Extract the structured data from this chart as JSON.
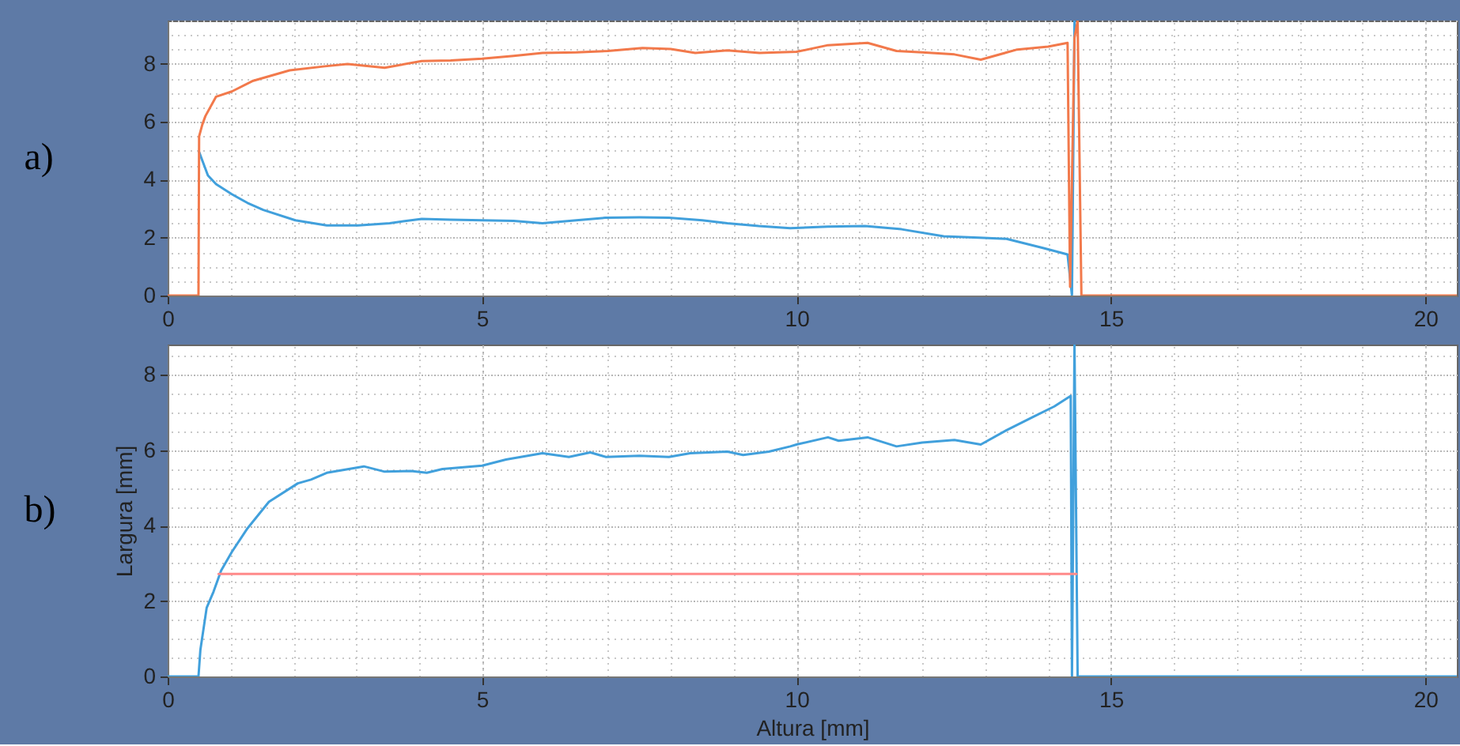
{
  "chart_data": [
    {
      "type": "line",
      "title": "a)",
      "xlim": [
        0,
        20.5
      ],
      "ylim": [
        0,
        9.5
      ],
      "xticks": [
        0,
        5,
        10,
        15,
        20
      ],
      "yticks": [
        0,
        2,
        4,
        6,
        8
      ],
      "grid": true,
      "series": [
        {
          "color": "#41a0dc",
          "x": [
            0.5,
            0.64,
            0.77,
            1.02,
            1.27,
            1.52,
            2.03,
            2.53,
            3.03,
            3.53,
            4.04,
            4.5,
            5.0,
            5.5,
            5.96,
            6.5,
            6.97,
            7.5,
            7.97,
            8.5,
            8.9,
            9.4,
            9.9,
            10.5,
            11.09,
            11.67,
            12.34,
            12.9,
            13.34,
            13.93,
            14.31,
            14.38,
            14.42
          ],
          "values": [
            4.96,
            4.15,
            3.85,
            3.5,
            3.2,
            2.96,
            2.6,
            2.42,
            2.42,
            2.5,
            2.65,
            2.62,
            2.6,
            2.58,
            2.5,
            2.6,
            2.69,
            2.7,
            2.69,
            2.6,
            2.5,
            2.4,
            2.33,
            2.38,
            2.4,
            2.29,
            2.05,
            2.0,
            1.96,
            1.64,
            1.42,
            0,
            9.5
          ]
        },
        {
          "color": "#f2794b",
          "x": [
            0,
            0.49,
            0.5,
            0.55,
            0.6,
            0.77,
            1.02,
            1.36,
            1.94,
            2.5,
            2.86,
            3.45,
            4.04,
            4.5,
            5.0,
            5.5,
            5.96,
            6.5,
            7.0,
            7.55,
            8.0,
            8.39,
            8.9,
            9.41,
            10.0,
            10.5,
            11.13,
            11.59,
            12.0,
            12.51,
            12.93,
            13.51,
            14.0,
            14.31,
            14.35,
            14.42,
            14.47,
            14.53,
            20.5
          ],
          "values": [
            0,
            0,
            5.5,
            5.9,
            6.2,
            6.87,
            7.05,
            7.42,
            7.78,
            7.92,
            8.0,
            7.87,
            8.1,
            8.12,
            8.18,
            8.28,
            8.38,
            8.4,
            8.45,
            8.55,
            8.52,
            8.38,
            8.47,
            8.38,
            8.42,
            8.65,
            8.73,
            8.45,
            8.4,
            8.33,
            8.15,
            8.5,
            8.6,
            8.73,
            0.3,
            8.9,
            9.5,
            0,
            0
          ]
        }
      ]
    },
    {
      "type": "line",
      "title": "b)",
      "xlabel": "Altura [mm]",
      "ylabel": "Largura [mm]",
      "xlim": [
        0,
        20.5
      ],
      "ylim": [
        0,
        8.8
      ],
      "xticks": [
        0,
        5,
        10,
        15,
        20
      ],
      "yticks": [
        0,
        2,
        4,
        6,
        8
      ],
      "grid": true,
      "series": [
        {
          "color": "#41a0dc",
          "x": [
            0,
            0.49,
            0.52,
            0.62,
            0.73,
            0.85,
            1.02,
            1.27,
            1.61,
            2.07,
            2.28,
            2.53,
            3.12,
            3.45,
            3.87,
            4.12,
            4.37,
            5.0,
            5.38,
            5.96,
            6.38,
            6.72,
            6.97,
            7.5,
            7.97,
            8.31,
            8.9,
            9.15,
            9.56,
            9.9,
            10.0,
            10.5,
            10.67,
            11.13,
            11.59,
            12.0,
            12.51,
            12.93,
            13.34,
            13.76,
            14.1,
            14.36,
            14.38,
            14.42,
            14.47,
            20.5
          ],
          "values": [
            0,
            0,
            0.7,
            1.82,
            2.25,
            2.81,
            3.3,
            3.93,
            4.63,
            5.12,
            5.22,
            5.4,
            5.57,
            5.43,
            5.45,
            5.4,
            5.5,
            5.59,
            5.75,
            5.92,
            5.82,
            5.94,
            5.82,
            5.85,
            5.82,
            5.92,
            5.96,
            5.87,
            5.96,
            6.1,
            6.15,
            6.34,
            6.25,
            6.34,
            6.1,
            6.2,
            6.27,
            6.15,
            6.53,
            6.88,
            7.16,
            7.44,
            0,
            8.8,
            0,
            0
          ]
        },
        {
          "color": "#ff8a8a",
          "x": [
            0.81,
            14.45
          ],
          "values": [
            2.72,
            2.72
          ]
        }
      ]
    }
  ]
}
